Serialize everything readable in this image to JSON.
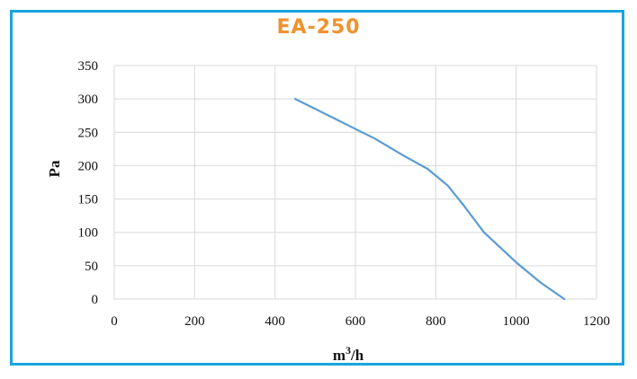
{
  "colors": {
    "frame": "#1aa3df",
    "title": "#f0922e",
    "series": "#5b9bd5",
    "grid": "#d9d9d9"
  },
  "chart_data": {
    "type": "line",
    "title": "EA-250",
    "xlabel_base": "m",
    "xlabel_sup": "3",
    "xlabel_tail": "/h",
    "ylabel": "Pa",
    "xlim": [
      0,
      1200
    ],
    "ylim": [
      0,
      350
    ],
    "xticks": [
      0,
      200,
      400,
      600,
      800,
      1000,
      1200
    ],
    "yticks": [
      0,
      50,
      100,
      150,
      200,
      250,
      300,
      350
    ],
    "grid": true,
    "legend": "none",
    "series": [
      {
        "x": [
          450,
          550,
          650,
          720,
          780,
          830,
          870,
          920,
          1000,
          1060,
          1120
        ],
        "y": [
          300,
          270,
          240,
          215,
          195,
          170,
          140,
          100,
          55,
          25,
          0
        ]
      }
    ]
  }
}
